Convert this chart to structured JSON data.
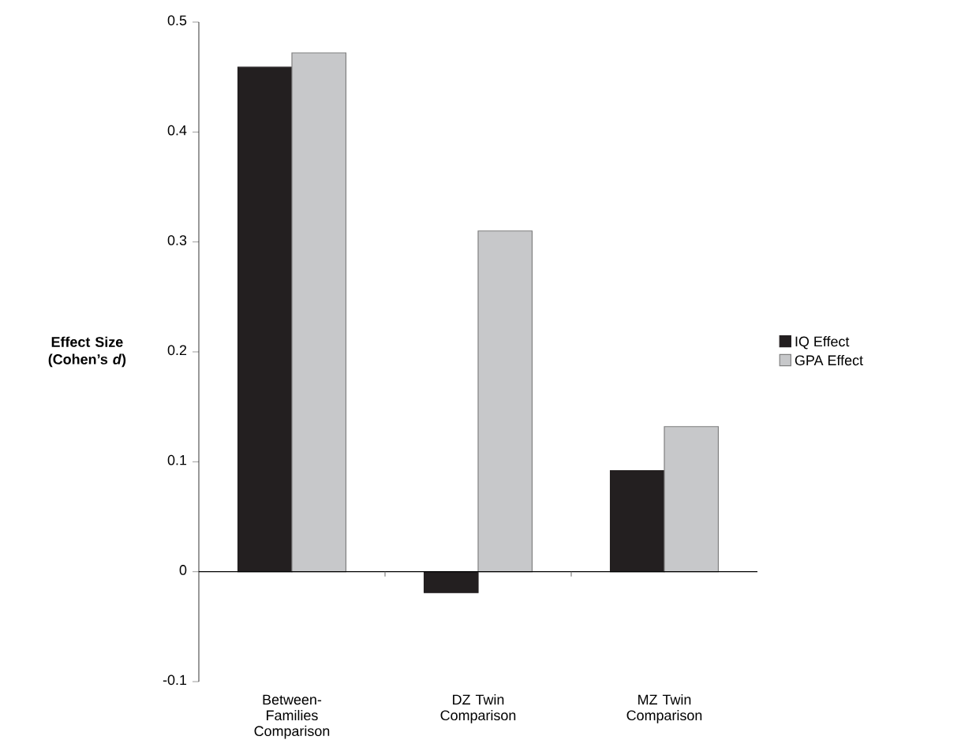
{
  "chart_data": {
    "type": "bar",
    "ylabel": "Effect Size (Cohen’s *d*)",
    "categories": [
      "Between-Families Comparison",
      "DZ Twin Comparison",
      "MZ Twin Comparison"
    ],
    "series": [
      {
        "name": "IQ Effect",
        "color": "#231f20",
        "values": [
          0.459,
          -0.019,
          0.092
        ]
      },
      {
        "name": "GPA Effect",
        "color": "#c7c8ca",
        "values": [
          0.472,
          0.31,
          0.132
        ]
      }
    ],
    "ylim": [
      -0.1,
      0.5
    ],
    "yticks": [
      -0.1,
      0,
      0.1,
      0.2,
      0.3,
      0.4,
      0.5
    ],
    "legend": "right"
  }
}
